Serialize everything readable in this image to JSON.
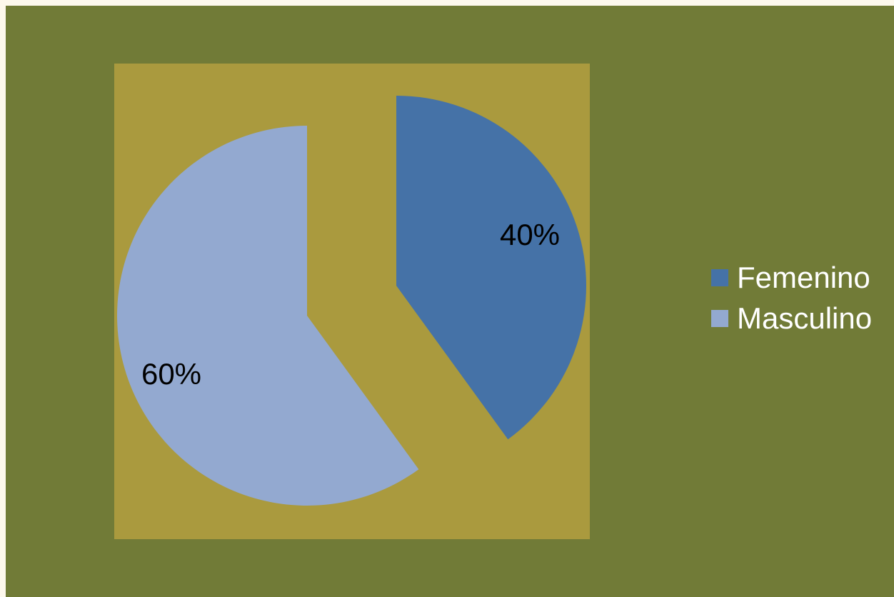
{
  "chart_data": {
    "type": "pie",
    "categories": [
      "Femenino",
      "Masculino"
    ],
    "values": [
      40,
      60
    ],
    "data_labels": [
      "40%",
      "60%"
    ],
    "colors": [
      "#4572a7",
      "#93a9d0"
    ],
    "exploded": true,
    "legend_position": "right",
    "title": ""
  },
  "colors": {
    "frame_background": "#717b37",
    "plot_background": "#aa9a3e",
    "legend_text": "#ffffff"
  }
}
